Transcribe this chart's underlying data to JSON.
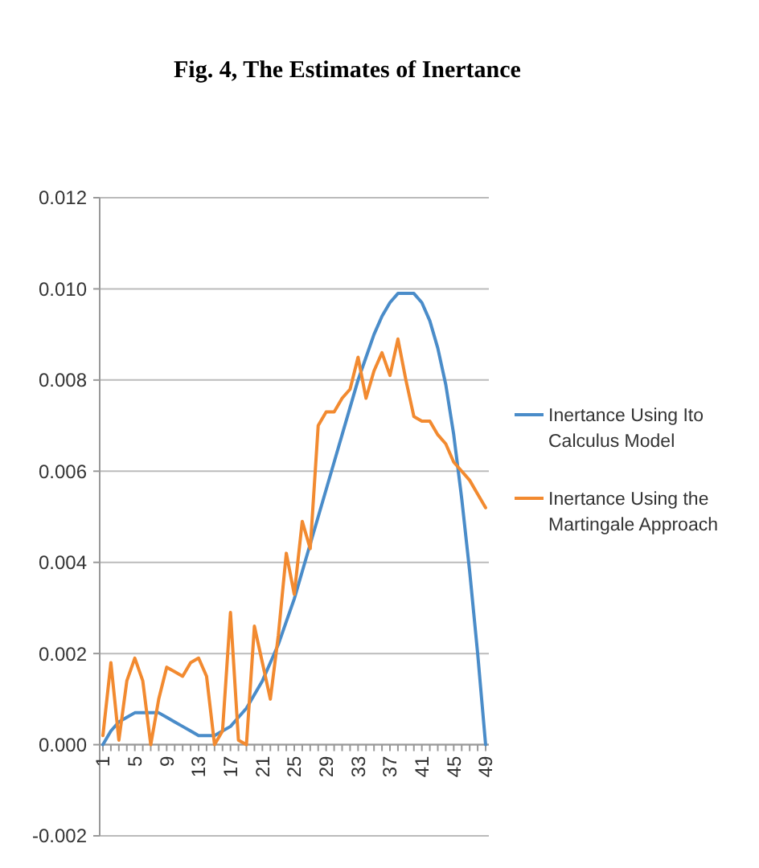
{
  "chart_data": {
    "type": "line",
    "title": "Fig. 4, The Estimates of Inertance",
    "categories": [
      "1",
      null,
      null,
      null,
      "5",
      null,
      null,
      null,
      "9",
      null,
      null,
      null,
      "13",
      null,
      null,
      null,
      "17",
      null,
      null,
      null,
      "21",
      null,
      null,
      null,
      "25",
      null,
      null,
      null,
      "29",
      null,
      null,
      null,
      "33",
      null,
      null,
      null,
      "37",
      null,
      null,
      null,
      "41",
      null,
      null,
      null,
      "45",
      null,
      null,
      null,
      "49"
    ],
    "series": [
      {
        "name": "Inertance Using Ito Calculus Model",
        "color": "#4a8cc9",
        "values": [
          0.0,
          0.0003,
          0.0005,
          0.0006,
          0.0007,
          0.0007,
          0.0007,
          0.0007,
          0.0006,
          0.0005,
          0.0004,
          0.0003,
          0.0002,
          0.0002,
          0.0002,
          0.0003,
          0.0004,
          0.0006,
          0.0008,
          0.0011,
          0.0014,
          0.0018,
          0.0022,
          0.0027,
          0.0032,
          0.0038,
          0.0044,
          0.005,
          0.0056,
          0.0062,
          0.0068,
          0.0074,
          0.008,
          0.0085,
          0.009,
          0.0094,
          0.0097,
          0.0099,
          0.0099,
          0.0099,
          0.0097,
          0.0093,
          0.0087,
          0.0079,
          0.0068,
          0.0054,
          0.0038,
          0.002,
          0.0
        ]
      },
      {
        "name": "Inertance Using the Martingale Approach",
        "color": "#f28a30",
        "values": [
          0.0002,
          0.0018,
          0.0001,
          0.0014,
          0.0019,
          0.0014,
          0.0,
          0.001,
          0.0017,
          0.0016,
          0.0015,
          0.0018,
          0.0019,
          0.0015,
          0.0,
          0.0003,
          0.0029,
          0.0001,
          0.0,
          0.0026,
          0.0018,
          0.001,
          0.0024,
          0.0042,
          0.0033,
          0.0049,
          0.0043,
          0.007,
          0.0073,
          0.0073,
          0.0076,
          0.0078,
          0.0085,
          0.0076,
          0.0082,
          0.0086,
          0.0081,
          0.0089,
          0.008,
          0.0072,
          0.0071,
          0.0071,
          0.0068,
          0.0066,
          0.0062,
          0.006,
          0.0058,
          0.0055,
          0.0052
        ]
      }
    ],
    "ylim": [
      -0.002,
      0.012
    ],
    "yticks": [
      {
        "value": -0.002,
        "label": "-0.002"
      },
      {
        "value": 0,
        "label": "0.000"
      },
      {
        "value": 0.002,
        "label": "0.002"
      },
      {
        "value": 0.004,
        "label": "0.004"
      },
      {
        "value": 0.006,
        "label": "0.006"
      },
      {
        "value": 0.008,
        "label": "0.008"
      },
      {
        "value": 0.01,
        "label": "0.010"
      },
      {
        "value": 0.012,
        "label": "0.012"
      }
    ],
    "grid": "y",
    "legend": "right",
    "marker": "none",
    "line_style": "solid"
  }
}
